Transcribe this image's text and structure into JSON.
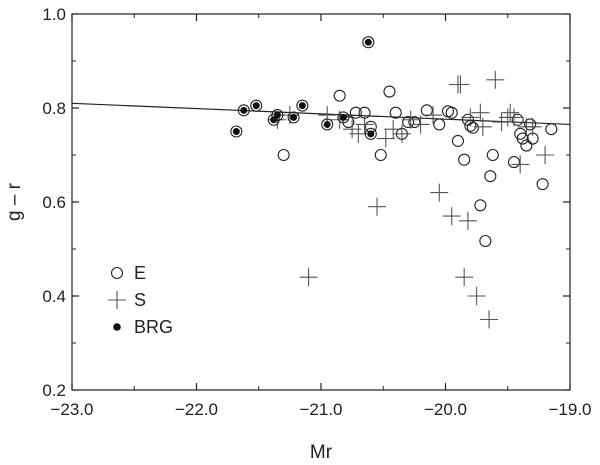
{
  "chart_data": {
    "type": "scatter",
    "title": "",
    "xlabel": "Mr",
    "ylabel": "g – r",
    "xlim": [
      -23.0,
      -19.0
    ],
    "ylim": [
      0.2,
      1.0
    ],
    "x_ticks": [
      "−23.0",
      "−22.0",
      "−21.0",
      "−20.0",
      "−19.0"
    ],
    "y_ticks": [
      "0.2",
      "0.4",
      "0.6",
      "0.8",
      "1.0"
    ],
    "x_tick_values": [
      -23.0,
      -22.0,
      -21.0,
      -20.0,
      -19.0
    ],
    "y_tick_values": [
      0.2,
      0.4,
      0.6,
      0.8,
      1.0
    ],
    "grid": false,
    "legend_position": "bottom-left",
    "fit_line": {
      "x": [
        -23.0,
        -19.0
      ],
      "y": [
        0.81,
        0.765
      ]
    },
    "series": [
      {
        "name": "E",
        "marker": "open-circle",
        "x": [
          -21.3,
          -20.85,
          -20.78,
          -20.72,
          -20.65,
          -20.6,
          -20.52,
          -20.45,
          -20.4,
          -20.35,
          -20.3,
          -20.25,
          -20.15,
          -20.05,
          -19.98,
          -19.95,
          -19.9,
          -19.85,
          -19.82,
          -19.8,
          -19.78,
          -19.72,
          -19.68,
          -19.64,
          -19.62,
          -19.45,
          -19.42,
          -19.4,
          -19.38,
          -19.35,
          -19.32,
          -19.3,
          -19.22,
          -19.15
        ],
        "y": [
          0.7,
          0.826,
          0.77,
          0.79,
          0.79,
          0.76,
          0.7,
          0.835,
          0.79,
          0.745,
          0.77,
          0.77,
          0.795,
          0.765,
          0.793,
          0.79,
          0.73,
          0.69,
          0.775,
          0.762,
          0.758,
          0.593,
          0.517,
          0.655,
          0.7,
          0.685,
          0.775,
          0.745,
          0.735,
          0.72,
          0.765,
          0.735,
          0.638,
          0.755
        ]
      },
      {
        "name": "S",
        "marker": "plus",
        "x": [
          -21.35,
          -21.25,
          -21.1,
          -20.95,
          -20.85,
          -20.75,
          -20.7,
          -20.65,
          -20.55,
          -20.48,
          -20.42,
          -20.35,
          -20.28,
          -20.2,
          -20.1,
          -20.05,
          -19.95,
          -19.9,
          -19.88,
          -19.85,
          -19.82,
          -19.8,
          -19.75,
          -19.72,
          -19.7,
          -19.65,
          -19.6,
          -19.55,
          -19.5,
          -19.48,
          -19.45,
          -19.4,
          -19.35,
          -19.3,
          -19.2
        ],
        "y": [
          0.775,
          0.785,
          0.44,
          0.785,
          0.775,
          0.755,
          0.745,
          0.765,
          0.59,
          0.735,
          0.755,
          0.745,
          0.775,
          0.765,
          0.785,
          0.62,
          0.57,
          0.85,
          0.85,
          0.44,
          0.56,
          0.78,
          0.4,
          0.79,
          0.76,
          0.35,
          0.86,
          0.77,
          0.78,
          0.79,
          0.78,
          0.68,
          0.76,
          0.76,
          0.7
        ]
      },
      {
        "name": "BRG",
        "marker": "filled-dot",
        "x": [
          -21.68,
          -21.62,
          -21.52,
          -21.38,
          -21.35,
          -21.15,
          -20.95,
          -20.82,
          -20.62,
          -20.6,
          -21.22
        ],
        "y": [
          0.75,
          0.795,
          0.805,
          0.775,
          0.785,
          0.805,
          0.765,
          0.78,
          0.94,
          0.745,
          0.78
        ]
      }
    ]
  }
}
